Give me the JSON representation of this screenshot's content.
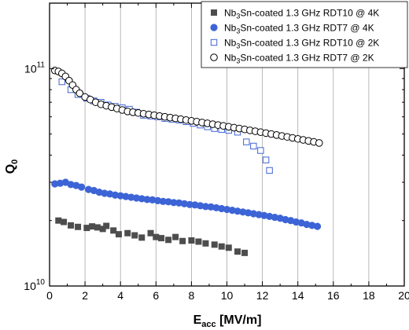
{
  "chart_data": {
    "type": "scatter",
    "title": "",
    "xlabel": {
      "main": "E",
      "sub": "acc",
      "rest": " [MV/m]"
    },
    "ylabel": {
      "main": "Q",
      "sub": "0"
    },
    "xlim": [
      0,
      20
    ],
    "ylim": [
      10000000000.0,
      200000000000.0
    ],
    "yscale": "log",
    "grid": "vertical major lines",
    "legend_position": "top-right",
    "x_ticks": [
      "0",
      "2",
      "4",
      "6",
      "8",
      "10",
      "12",
      "14",
      "16",
      "18",
      "20"
    ],
    "y_ticks": [
      {
        "value": 100000000000.0,
        "base": "10",
        "exp": "11"
      },
      {
        "value": 10000000000.0,
        "base": "10",
        "exp": "10"
      }
    ],
    "series": [
      {
        "name": "Nb3Sn-coated 1.3 GHz RDT10 @ 4K",
        "legend": {
          "a": "Nb",
          "sub": "3",
          "b": "Sn-coated 1.3 GHz RDT10 @ 4K"
        },
        "marker": "square-filled",
        "color": "#4d4d4d",
        "x": [
          0.5,
          0.8,
          1.2,
          1.6,
          2.1,
          2.4,
          2.7,
          3.0,
          3.2,
          3.6,
          3.9,
          4.4,
          4.8,
          5.2,
          5.7,
          6.0,
          6.3,
          6.7,
          7.1,
          7.5,
          8.0,
          8.4,
          8.8,
          9.3,
          9.7,
          10.1,
          10.6,
          11.0
        ],
        "y": [
          20000000000.0,
          19700000000.0,
          19000000000.0,
          18700000000.0,
          18500000000.0,
          18800000000.0,
          18600000000.0,
          18300000000.0,
          18900000000.0,
          18000000000.0,
          17300000000.0,
          17500000000.0,
          17100000000.0,
          16700000000.0,
          17500000000.0,
          16800000000.0,
          16600000000.0,
          16300000000.0,
          16800000000.0,
          16100000000.0,
          16200000000.0,
          16000000000.0,
          15700000000.0,
          15500000000.0,
          15200000000.0,
          15000000000.0,
          14400000000.0,
          14200000000.0
        ]
      },
      {
        "name": "Nb3Sn-coated 1.3 GHz RDT7 @ 4K",
        "legend": {
          "a": "Nb",
          "sub": "3",
          "b": "Sn-coated 1.3 GHz RDT7 @ 4K"
        },
        "marker": "circle-filled",
        "color": "#3d64d6",
        "x": [
          0.3,
          0.6,
          0.9,
          1.2,
          1.5,
          1.8,
          2.2,
          2.5,
          2.8,
          3.1,
          3.4,
          3.7,
          4.0,
          4.3,
          4.6,
          4.9,
          5.2,
          5.5,
          5.8,
          6.1,
          6.4,
          6.7,
          7.0,
          7.3,
          7.6,
          7.9,
          8.2,
          8.5,
          8.8,
          9.1,
          9.4,
          9.7,
          10.0,
          10.3,
          10.6,
          10.9,
          11.2,
          11.5,
          11.8,
          12.1,
          12.4,
          12.7,
          13.0,
          13.3,
          13.6,
          13.9,
          14.2,
          14.5,
          14.8,
          15.1
        ],
        "y": [
          29500000000.0,
          29700000000.0,
          30000000000.0,
          29300000000.0,
          29000000000.0,
          28500000000.0,
          27800000000.0,
          27500000000.0,
          27000000000.0,
          26700000000.0,
          26500000000.0,
          26200000000.0,
          26000000000.0,
          25800000000.0,
          25600000000.0,
          25400000000.0,
          25200000000.0,
          25000000000.0,
          24900000000.0,
          24700000000.0,
          24500000000.0,
          24400000000.0,
          24200000000.0,
          24100000000.0,
          23900000000.0,
          23700000000.0,
          23600000000.0,
          23400000000.0,
          23200000000.0,
          23100000000.0,
          22900000000.0,
          22700000000.0,
          22500000000.0,
          22300000000.0,
          22100000000.0,
          21900000000.0,
          21700000000.0,
          21500000000.0,
          21300000000.0,
          21100000000.0,
          20900000000.0,
          20700000000.0,
          20500000000.0,
          20200000000.0,
          20000000000.0,
          19700000000.0,
          19500000000.0,
          19200000000.0,
          19000000000.0,
          18800000000.0
        ]
      },
      {
        "name": "Nb3Sn-coated 1.3 GHz RDT10 @ 2K",
        "legend": {
          "a": "Nb",
          "sub": "3",
          "b": "Sn-coated 1.3 GHz RDT10 @ 2K"
        },
        "marker": "square-open",
        "color": "#3d64d6",
        "x": [
          0.7,
          1.2,
          1.6,
          2.1,
          2.5,
          2.9,
          3.3,
          3.7,
          4.1,
          4.5,
          4.9,
          5.3,
          5.7,
          6.1,
          6.5,
          6.9,
          7.3,
          7.7,
          8.1,
          8.5,
          8.9,
          9.3,
          9.7,
          10.1,
          10.6,
          11.1,
          11.5,
          11.9,
          12.2,
          12.4
        ],
        "y": [
          87000000000.0,
          80000000000.0,
          76000000000.0,
          73000000000.0,
          71000000000.0,
          70000000000.0,
          68000000000.0,
          67000000000.0,
          66000000000.0,
          65000000000.0,
          63000000000.0,
          61000000000.0,
          60500000000.0,
          60000000000.0,
          59000000000.0,
          58500000000.0,
          58000000000.0,
          57000000000.0,
          56000000000.0,
          55000000000.0,
          54000000000.0,
          53000000000.0,
          52500000000.0,
          52000000000.0,
          51000000000.0,
          46000000000.0,
          44000000000.0,
          42000000000.0,
          38000000000.0,
          34000000000.0
        ]
      },
      {
        "name": "Nb3Sn-coated 1.3 GHz RDT7 @ 2K",
        "legend": {
          "a": "Nb",
          "sub": "3",
          "b": "Sn-coated 1.3 GHz RDT7 @ 2K"
        },
        "marker": "circle-open",
        "color": "#000000",
        "x": [
          0.3,
          0.5,
          0.7,
          0.9,
          1.1,
          1.3,
          1.5,
          1.7,
          2.0,
          2.3,
          2.6,
          2.9,
          3.2,
          3.5,
          3.8,
          4.1,
          4.4,
          4.7,
          5.0,
          5.3,
          5.6,
          5.9,
          6.2,
          6.5,
          6.8,
          7.1,
          7.4,
          7.7,
          8.0,
          8.3,
          8.6,
          8.9,
          9.2,
          9.5,
          9.8,
          10.1,
          10.4,
          10.7,
          11.0,
          11.3,
          11.6,
          11.9,
          12.2,
          12.5,
          12.8,
          13.1,
          13.4,
          13.7,
          14.0,
          14.3,
          14.6,
          14.9,
          15.2
        ],
        "y": [
          98000000000.0,
          97000000000.0,
          95000000000.0,
          92000000000.0,
          88000000000.0,
          84000000000.0,
          80000000000.0,
          77000000000.0,
          74000000000.0,
          72000000000.0,
          70000000000.0,
          68500000000.0,
          67500000000.0,
          66500000000.0,
          65500000000.0,
          64500000000.0,
          63500000000.0,
          63000000000.0,
          62500000000.0,
          62000000000.0,
          61500000000.0,
          61000000000.0,
          60500000000.0,
          60000000000.0,
          59500000000.0,
          59000000000.0,
          58500000000.0,
          58000000000.0,
          57500000000.0,
          57000000000.0,
          56500000000.0,
          56000000000.0,
          55500000000.0,
          55000000000.0,
          54500000000.0,
          54000000000.0,
          53500000000.0,
          53000000000.0,
          52500000000.0,
          52000000000.0,
          51500000000.0,
          51000000000.0,
          50500000000.0,
          50000000000.0,
          49500000000.0,
          49000000000.0,
          48500000000.0,
          48000000000.0,
          47500000000.0,
          47000000000.0,
          46500000000.0,
          46000000000.0,
          45500000000.0
        ]
      }
    ]
  }
}
